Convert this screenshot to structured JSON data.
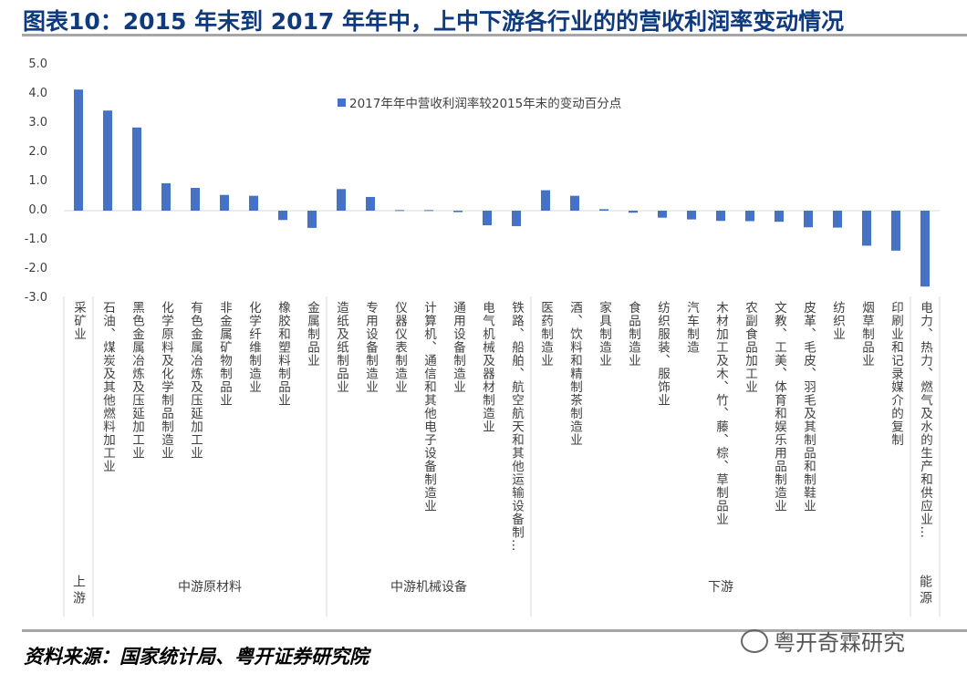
{
  "title": "图表10：2015 年末到 2017 年年中，上中下游各行业的的营收利润率变动情况",
  "source": "资料来源：国家统计局、粤开证券研究院",
  "watermark": "粤开奇霖研究",
  "chart_data": {
    "type": "bar",
    "title": "",
    "xlabel": "",
    "ylabel": "",
    "ylim": [
      -3.0,
      5.0
    ],
    "yticks": [
      "5.0",
      "4.0",
      "3.0",
      "2.0",
      "1.0",
      "0.0",
      "-1.0",
      "-2.0",
      "-3.0"
    ],
    "grid": false,
    "legend_position": "top-center",
    "bar_color": "#4472c4",
    "categories": [
      "采矿业",
      "石油、煤炭及其他燃料加工业",
      "黑色金属冶炼及压延加工业",
      "化学原料及化学制品制造业",
      "有色金属冶炼及压延加工业",
      "非金属矿物制品业",
      "化学纤维制造业",
      "橡胶和塑料制品业",
      "金属制品业",
      "造纸及纸制品业",
      "专用设备制造业",
      "仪器仪表制造业",
      "计算机、通信和其他电子设备制造业",
      "通用设备制造业",
      "电气机械及器材制造业",
      "铁路、船舶、航空航天和其他运输设备制…",
      "医药制造业",
      "酒、饮料和精制茶制造业",
      "家具制造业",
      "食品制造业",
      "纺织服装、服饰业",
      "汽车制造",
      "木材加工及木、竹、藤、棕、草制品业",
      "农副食品加工业",
      "文教、工美、体育和娱乐用品制造业",
      "皮革、毛皮、羽毛及其制品和制鞋业",
      "纺织业",
      "烟草制品业",
      "印刷业和记录媒介的复制",
      "电力、热力、燃气及水的生产和供应业…"
    ],
    "groups": [
      {
        "label": "上游",
        "count": 1,
        "vertical": true
      },
      {
        "label": "中游原材料",
        "count": 8
      },
      {
        "label": "中游机械设备",
        "count": 7
      },
      {
        "label": "下游",
        "count": 13
      },
      {
        "label": "能源",
        "count": 1,
        "vertical": true
      }
    ],
    "series": [
      {
        "name": "2017年年中营收利润率较2015年末的变动百分点",
        "values": [
          4.15,
          3.43,
          2.85,
          0.94,
          0.78,
          0.54,
          0.51,
          -0.32,
          -0.59,
          0.74,
          0.47,
          0.02,
          0.02,
          -0.05,
          -0.5,
          -0.53,
          0.7,
          0.51,
          0.05,
          -0.07,
          -0.24,
          -0.3,
          -0.35,
          -0.36,
          -0.38,
          -0.57,
          -0.58,
          -1.2,
          -1.37,
          -2.6
        ]
      }
    ]
  }
}
